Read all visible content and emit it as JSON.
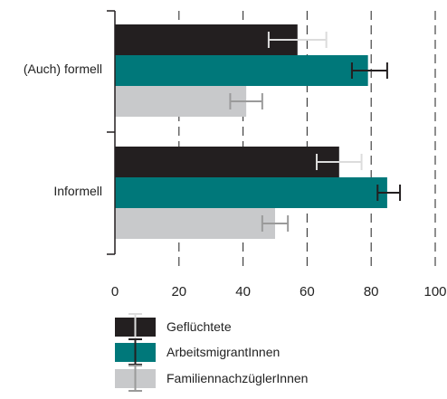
{
  "chart_data": {
    "type": "bar",
    "orientation": "horizontal",
    "categories": [
      "(Auch) formell",
      "Informell"
    ],
    "series": [
      {
        "name": "Geflüchtete",
        "color": "#231f20",
        "errorbar_color": "#dcdcdc",
        "values": [
          57,
          70
        ],
        "error_low": [
          48,
          63
        ],
        "error_high": [
          66,
          77
        ]
      },
      {
        "name": "ArbeitsmigrantInnen",
        "color": "#00787a",
        "errorbar_color": "#231f20",
        "values": [
          79,
          85
        ],
        "error_low": [
          74,
          82
        ],
        "error_high": [
          85,
          89
        ]
      },
      {
        "name": "FamiliennachzüglerInnen",
        "color": "#c8c9cb",
        "errorbar_color": "#9a9a9a",
        "values": [
          41,
          50
        ],
        "error_low": [
          36,
          46
        ],
        "error_high": [
          46,
          54
        ]
      }
    ],
    "xlim": [
      0,
      100
    ],
    "xticks": [
      "0",
      "20",
      "40",
      "60",
      "80",
      "100"
    ],
    "xlabel": "",
    "ylabel": "",
    "grid": "vertical dashed",
    "legend_position": "bottom-left"
  }
}
